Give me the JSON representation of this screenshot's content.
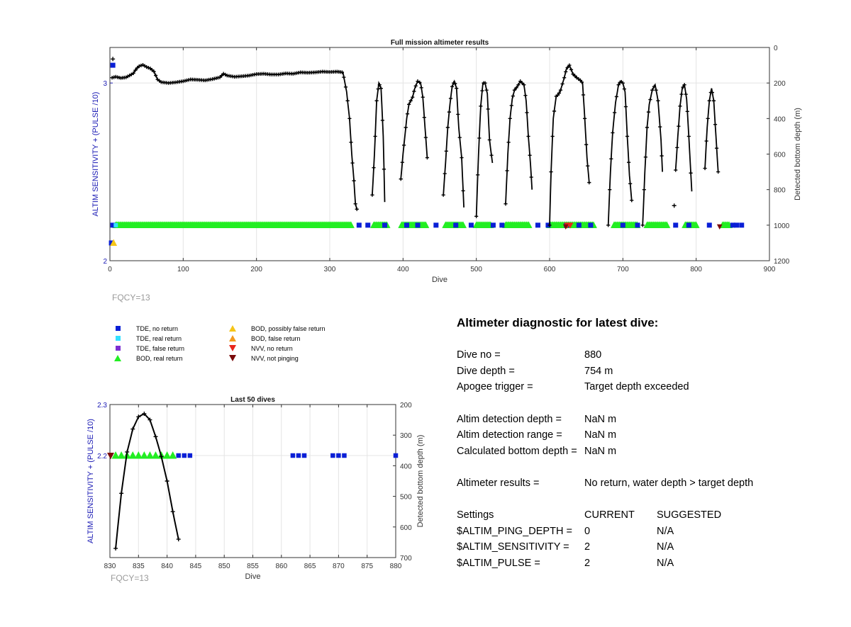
{
  "colors": {
    "tde_no_return": "#0a1fd6",
    "tde_real_return": "#33e0ff",
    "tde_false_return": "#7b2fd2",
    "bod_real_return": "#22ee22",
    "bod_possibly_false": "#f5c518",
    "bod_false_return": "#f29a1e",
    "nvv_no_return": "#e8261c",
    "nvv_not_pinging": "#7a0a0a",
    "depth_trace": "#000000",
    "left_axis": "#1a1ab4",
    "fqcy": "#9a9a9a"
  },
  "chart_data": [
    {
      "id": "full-mission",
      "type": "scatter",
      "title": "Full mission altimeter results",
      "xlabel": "Dive",
      "ylabel_left": "ALTIM SENSITIVITY + (PULSE /10)",
      "ylabel_right": "Detected bottom depth (m)",
      "xlim": [
        0,
        900
      ],
      "ylim_left": [
        2,
        3.2
      ],
      "ylim_right": [
        0,
        1200
      ],
      "right_axis_reversed": true,
      "x_ticks": [
        0,
        100,
        200,
        300,
        400,
        500,
        600,
        700,
        800,
        900
      ],
      "y_ticks_left": [
        2,
        3
      ],
      "y_ticks_right": [
        0,
        200,
        400,
        600,
        800,
        1000,
        1200
      ],
      "grid": true,
      "depth_profile": [
        [
          3,
          170
        ],
        [
          8,
          165
        ],
        [
          15,
          172
        ],
        [
          22,
          168
        ],
        [
          28,
          155
        ],
        [
          32,
          145
        ],
        [
          36,
          120
        ],
        [
          40,
          105
        ],
        [
          45,
          98
        ],
        [
          50,
          110
        ],
        [
          55,
          118
        ],
        [
          60,
          135
        ],
        [
          65,
          180
        ],
        [
          70,
          195
        ],
        [
          80,
          200
        ],
        [
          90,
          196
        ],
        [
          100,
          190
        ],
        [
          110,
          180
        ],
        [
          120,
          182
        ],
        [
          130,
          185
        ],
        [
          140,
          178
        ],
        [
          150,
          168
        ],
        [
          155,
          148
        ],
        [
          160,
          158
        ],
        [
          170,
          165
        ],
        [
          180,
          162
        ],
        [
          190,
          158
        ],
        [
          200,
          150
        ],
        [
          210,
          148
        ],
        [
          220,
          152
        ],
        [
          230,
          152
        ],
        [
          240,
          146
        ],
        [
          250,
          148
        ],
        [
          260,
          140
        ],
        [
          270,
          142
        ],
        [
          280,
          140
        ],
        [
          290,
          136
        ],
        [
          300,
          138
        ],
        [
          310,
          136
        ],
        [
          318,
          140
        ],
        [
          323,
          250
        ],
        [
          327,
          400
        ],
        [
          330,
          600
        ],
        [
          333,
          750
        ],
        [
          335,
          880
        ],
        [
          337,
          910
        ],
        [
          358,
          830
        ],
        [
          361,
          600
        ],
        [
          364,
          300
        ],
        [
          367,
          200
        ],
        [
          370,
          230
        ],
        [
          373,
          500
        ],
        [
          375,
          870
        ],
        [
          397,
          740
        ],
        [
          400,
          600
        ],
        [
          405,
          400
        ],
        [
          408,
          320
        ],
        [
          413,
          280
        ],
        [
          416,
          230
        ],
        [
          420,
          190
        ],
        [
          424,
          200
        ],
        [
          427,
          280
        ],
        [
          430,
          450
        ],
        [
          433,
          620
        ],
        [
          455,
          830
        ],
        [
          458,
          650
        ],
        [
          461,
          450
        ],
        [
          464,
          320
        ],
        [
          467,
          220
        ],
        [
          470,
          190
        ],
        [
          473,
          230
        ],
        [
          476,
          450
        ],
        [
          480,
          620
        ],
        [
          483,
          900
        ],
        [
          500,
          950
        ],
        [
          503,
          600
        ],
        [
          506,
          330
        ],
        [
          509,
          200
        ],
        [
          512,
          200
        ],
        [
          515,
          260
        ],
        [
          518,
          520
        ],
        [
          522,
          650
        ],
        [
          540,
          880
        ],
        [
          543,
          600
        ],
        [
          546,
          400
        ],
        [
          549,
          290
        ],
        [
          552,
          240
        ],
        [
          556,
          220
        ],
        [
          560,
          190
        ],
        [
          565,
          210
        ],
        [
          568,
          300
        ],
        [
          571,
          500
        ],
        [
          574,
          660
        ],
        [
          576,
          800
        ],
        [
          600,
          1000
        ],
        [
          602,
          700
        ],
        [
          605,
          400
        ],
        [
          609,
          275
        ],
        [
          612,
          265
        ],
        [
          615,
          240
        ],
        [
          620,
          170
        ],
        [
          623,
          120
        ],
        [
          627,
          100
        ],
        [
          632,
          150
        ],
        [
          637,
          170
        ],
        [
          642,
          185
        ],
        [
          645,
          200
        ],
        [
          648,
          400
        ],
        [
          651,
          620
        ],
        [
          654,
          760
        ],
        [
          680,
          1000
        ],
        [
          683,
          700
        ],
        [
          686,
          480
        ],
        [
          690,
          310
        ],
        [
          694,
          210
        ],
        [
          697,
          190
        ],
        [
          700,
          200
        ],
        [
          703,
          250
        ],
        [
          706,
          500
        ],
        [
          709,
          720
        ],
        [
          712,
          860
        ],
        [
          727,
          1000
        ],
        [
          730,
          700
        ],
        [
          733,
          450
        ],
        [
          736,
          320
        ],
        [
          740,
          240
        ],
        [
          744,
          210
        ],
        [
          748,
          300
        ],
        [
          752,
          520
        ],
        [
          754,
          700
        ],
        [
          772,
          690
        ],
        [
          775,
          500
        ],
        [
          778,
          330
        ],
        [
          781,
          230
        ],
        [
          784,
          210
        ],
        [
          787,
          290
        ],
        [
          790,
          500
        ],
        [
          794,
          810
        ],
        [
          812,
          680
        ],
        [
          815,
          450
        ],
        [
          818,
          300
        ],
        [
          821,
          230
        ],
        [
          824,
          300
        ],
        [
          827,
          500
        ],
        [
          830,
          700
        ]
      ],
      "isolated_depth_points": [
        [
          4,
          65
        ],
        [
          770,
          890
        ]
      ],
      "tde_no_return_dives": [
        4,
        340,
        352,
        375,
        405,
        420,
        445,
        472,
        493,
        523,
        535,
        584,
        598,
        623,
        640,
        656,
        700,
        720,
        772,
        790,
        818,
        850,
        855,
        862
      ],
      "tde_no_return_high": [
        [
          4,
          3.1
        ],
        [
          2,
          2.1
        ]
      ],
      "bod_real_return_ranges": [
        [
          8,
          330
        ],
        [
          360,
          378
        ],
        [
          398,
          432
        ],
        [
          458,
          482
        ],
        [
          500,
          520
        ],
        [
          540,
          572
        ],
        [
          600,
          660
        ],
        [
          688,
          720
        ],
        [
          733,
          760
        ],
        [
          785,
          800
        ],
        [
          836,
          846
        ]
      ],
      "bod_possibly_false": [
        [
          5,
          2.1
        ]
      ],
      "nvv_no_return_dives": [
        624,
        628
      ],
      "nvv_not_pinging_dives": [
        622,
        832
      ]
    },
    {
      "id": "last-50",
      "type": "scatter",
      "title": "Last 50 dives",
      "xlabel": "Dive",
      "ylabel_left": "ALTIM SENSITIVITY + (PULSE /10)",
      "ylabel_right": "Detected bottom depth (m)",
      "xlim": [
        830,
        880
      ],
      "ylim_left": [
        2.0,
        2.3
      ],
      "ylim_right": [
        200,
        700
      ],
      "right_axis_reversed": true,
      "x_ticks": [
        830,
        835,
        840,
        845,
        850,
        855,
        860,
        865,
        870,
        875,
        880
      ],
      "y_ticks_left": [
        2.2,
        2.3
      ],
      "y_ticks_right": [
        200,
        300,
        400,
        500,
        600,
        700
      ],
      "grid": true,
      "depth_profile": [
        [
          831,
          670
        ],
        [
          832,
          490
        ],
        [
          833,
          355
        ],
        [
          834,
          280
        ],
        [
          835,
          240
        ],
        [
          836,
          230
        ],
        [
          837,
          250
        ],
        [
          838,
          305
        ],
        [
          839,
          370
        ],
        [
          840,
          450
        ],
        [
          841,
          550
        ],
        [
          842,
          640
        ]
      ],
      "bod_real_return_dives": [
        831,
        832,
        833,
        834,
        835,
        836,
        837,
        838,
        839,
        840,
        841
      ],
      "tde_no_return_dives": [
        842,
        843,
        844,
        862,
        863,
        864,
        869,
        870,
        871,
        880
      ],
      "nvv_not_pinging_dives": [
        830
      ],
      "y_marker_level": 2.2
    }
  ],
  "fqcy_label": "FQCY=13",
  "legend": {
    "col1": [
      "TDE, no return",
      "TDE, real return",
      "TDE, false return",
      "BOD, real return"
    ],
    "col2": [
      "BOD, possibly false return",
      "BOD, false return",
      "NVV, no return",
      "NVV, not pinging"
    ]
  },
  "diagnostic": {
    "title": "Altimeter diagnostic for latest dive:",
    "dive_no_label": "Dive no =",
    "dive_no_value": "880",
    "dive_depth_label": "Dive depth =",
    "dive_depth_value": "754 m",
    "apogee_label": "Apogee trigger =",
    "apogee_value": "Target depth exceeded",
    "altim_det_depth_label": "Altim detection depth =",
    "altim_det_depth_value": "NaN m",
    "altim_det_range_label": "Altim detection range =",
    "altim_det_range_value": "NaN m",
    "calc_bottom_label": "Calculated bottom depth =",
    "calc_bottom_value": "NaN m",
    "results_label": "Altimeter results =",
    "results_value": "No return, water depth > target depth",
    "settings_header": "Settings",
    "current_header": "CURRENT",
    "suggested_header": "SUGGESTED",
    "settings": [
      {
        "name": "$ALTIM_PING_DEPTH =",
        "current": "0",
        "suggested": "N/A"
      },
      {
        "name": "$ALTIM_SENSITIVITY =",
        "current": "2",
        "suggested": "N/A"
      },
      {
        "name": "$ALTIM_PULSE =",
        "current": "2",
        "suggested": "N/A"
      }
    ]
  }
}
